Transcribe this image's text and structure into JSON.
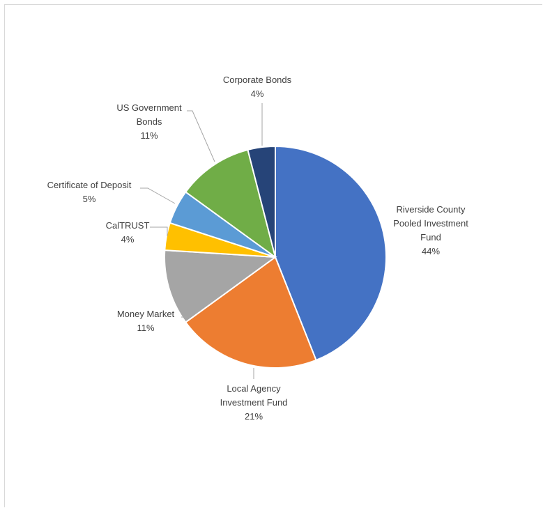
{
  "chart_data": {
    "type": "pie",
    "title": "",
    "start_angle_deg": 0,
    "direction": "clockwise",
    "slices": [
      {
        "name": "Riverside County Pooled Investment Fund",
        "label_lines": [
          "Riverside County",
          "Pooled Investment",
          "Fund"
        ],
        "value": 44,
        "pct_label": "44%",
        "color": "#4472c4"
      },
      {
        "name": "Local Agency Investment Fund",
        "label_lines": [
          "Local Agency",
          "Investment Fund"
        ],
        "value": 21,
        "pct_label": "21%",
        "color": "#ed7d31"
      },
      {
        "name": "Money Market",
        "label_lines": [
          "Money Market"
        ],
        "value": 11,
        "pct_label": "11%",
        "color": "#a5a5a5"
      },
      {
        "name": "CalTRUST",
        "label_lines": [
          "CalTRUST"
        ],
        "value": 4,
        "pct_label": "4%",
        "color": "#ffc000"
      },
      {
        "name": "Certificate of Deposit",
        "label_lines": [
          "Certificate of Deposit"
        ],
        "value": 5,
        "pct_label": "5%",
        "color": "#5b9bd5"
      },
      {
        "name": "US Government Bonds",
        "label_lines": [
          "US Government",
          "Bonds"
        ],
        "value": 11,
        "pct_label": "11%",
        "color": "#70ad47"
      },
      {
        "name": "Corporate Bonds",
        "label_lines": [
          "Corporate Bonds"
        ],
        "value": 4,
        "pct_label": "4%",
        "color": "#264478"
      }
    ]
  }
}
